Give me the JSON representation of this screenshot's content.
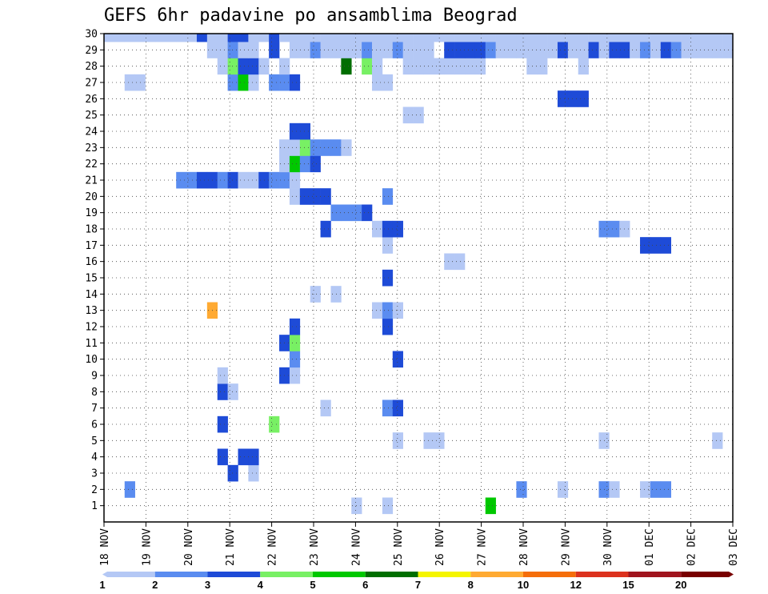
{
  "chart_data": {
    "type": "heatmap",
    "title": "GEFS 6hr padavine po ansamblima Beograd",
    "xlabel": "",
    "ylabel": "",
    "x_tick_labels": [
      "18 NOV",
      "19 NOV",
      "20 NOV",
      "21 NOV",
      "22 NOV",
      "23 NOV",
      "24 NOV",
      "25 NOV",
      "26 NOV",
      "27 NOV",
      "28 NOV",
      "29 NOV",
      "30 NOV",
      "01 DEC",
      "02 DEC",
      "03 DEC"
    ],
    "time_steps": 61,
    "members": 30,
    "grid": true,
    "colorbar": {
      "levels": [
        "1",
        "2",
        "3",
        "4",
        "5",
        "6",
        "7",
        "8",
        "10",
        "12",
        "15",
        "20"
      ],
      "colors": [
        "#b4c8f5",
        "#5a8cf0",
        "#1e4bd7",
        "#78f064",
        "#00c800",
        "#006e00",
        "#f5f500",
        "#ffaa32",
        "#f56e0a",
        "#dc321e",
        "#a0141e",
        "#780000"
      ]
    },
    "cells": [
      [
        1,
        24,
        1
      ],
      [
        1,
        27,
        1
      ],
      [
        1,
        37,
        5
      ],
      [
        2,
        2,
        2
      ],
      [
        2,
        40,
        2
      ],
      [
        2,
        44,
        1
      ],
      [
        2,
        48,
        2
      ],
      [
        2,
        49,
        1
      ],
      [
        2,
        52,
        1
      ],
      [
        2,
        53,
        2
      ],
      [
        2,
        54,
        2
      ],
      [
        3,
        12,
        3
      ],
      [
        3,
        14,
        1
      ],
      [
        4,
        11,
        3
      ],
      [
        4,
        13,
        3
      ],
      [
        4,
        14,
        3
      ],
      [
        5,
        28,
        1
      ],
      [
        5,
        31,
        1
      ],
      [
        5,
        32,
        1
      ],
      [
        5,
        48,
        1
      ],
      [
        5,
        59,
        1
      ],
      [
        6,
        11,
        3
      ],
      [
        6,
        16,
        4
      ],
      [
        7,
        21,
        1
      ],
      [
        7,
        27,
        2
      ],
      [
        7,
        28,
        3
      ],
      [
        8,
        11,
        3
      ],
      [
        8,
        12,
        1
      ],
      [
        9,
        11,
        1
      ],
      [
        9,
        17,
        3
      ],
      [
        9,
        18,
        1
      ],
      [
        10,
        18,
        2
      ],
      [
        10,
        28,
        3
      ],
      [
        11,
        17,
        3
      ],
      [
        11,
        18,
        4
      ],
      [
        12,
        18,
        3
      ],
      [
        12,
        27,
        3
      ],
      [
        13,
        10,
        8
      ],
      [
        13,
        26,
        1
      ],
      [
        13,
        27,
        2
      ],
      [
        13,
        28,
        1
      ],
      [
        14,
        20,
        1
      ],
      [
        14,
        22,
        1
      ],
      [
        15,
        27,
        3
      ],
      [
        16,
        33,
        1
      ],
      [
        16,
        34,
        1
      ],
      [
        17,
        27,
        1
      ],
      [
        17,
        52,
        3
      ],
      [
        17,
        53,
        3
      ],
      [
        17,
        54,
        3
      ],
      [
        18,
        21,
        3
      ],
      [
        18,
        26,
        1
      ],
      [
        18,
        27,
        3
      ],
      [
        18,
        28,
        3
      ],
      [
        18,
        48,
        2
      ],
      [
        18,
        49,
        2
      ],
      [
        18,
        50,
        1
      ],
      [
        19,
        22,
        2
      ],
      [
        19,
        23,
        2
      ],
      [
        19,
        24,
        2
      ],
      [
        19,
        25,
        3
      ],
      [
        20,
        18,
        1
      ],
      [
        20,
        19,
        3
      ],
      [
        20,
        20,
        3
      ],
      [
        20,
        21,
        3
      ],
      [
        20,
        27,
        2
      ],
      [
        21,
        7,
        2
      ],
      [
        21,
        8,
        2
      ],
      [
        21,
        9,
        3
      ],
      [
        21,
        10,
        3
      ],
      [
        21,
        11,
        2
      ],
      [
        21,
        12,
        3
      ],
      [
        21,
        13,
        1
      ],
      [
        21,
        14,
        1
      ],
      [
        21,
        15,
        3
      ],
      [
        21,
        16,
        2
      ],
      [
        21,
        17,
        2
      ],
      [
        21,
        18,
        1
      ],
      [
        22,
        17,
        1
      ],
      [
        22,
        18,
        5
      ],
      [
        22,
        19,
        2
      ],
      [
        22,
        20,
        3
      ],
      [
        23,
        17,
        1
      ],
      [
        23,
        18,
        1
      ],
      [
        23,
        19,
        4
      ],
      [
        23,
        20,
        2
      ],
      [
        23,
        21,
        2
      ],
      [
        23,
        22,
        2
      ],
      [
        23,
        23,
        1
      ],
      [
        24,
        18,
        3
      ],
      [
        24,
        19,
        3
      ],
      [
        25,
        29,
        1
      ],
      [
        25,
        30,
        1
      ],
      [
        26,
        44,
        3
      ],
      [
        26,
        45,
        3
      ],
      [
        26,
        46,
        3
      ],
      [
        27,
        2,
        1
      ],
      [
        27,
        3,
        1
      ],
      [
        27,
        12,
        2
      ],
      [
        27,
        13,
        5
      ],
      [
        27,
        14,
        1
      ],
      [
        27,
        16,
        2
      ],
      [
        27,
        17,
        2
      ],
      [
        27,
        18,
        3
      ],
      [
        27,
        26,
        1
      ],
      [
        27,
        27,
        1
      ],
      [
        28,
        11,
        1
      ],
      [
        28,
        12,
        4
      ],
      [
        28,
        13,
        3
      ],
      [
        28,
        14,
        3
      ],
      [
        28,
        15,
        1
      ],
      [
        28,
        17,
        1
      ],
      [
        28,
        23,
        6
      ],
      [
        28,
        25,
        4
      ],
      [
        28,
        26,
        1
      ],
      [
        28,
        29,
        1
      ],
      [
        28,
        30,
        1
      ],
      [
        28,
        31,
        1
      ],
      [
        28,
        32,
        1
      ],
      [
        28,
        33,
        1
      ],
      [
        28,
        34,
        1
      ],
      [
        28,
        35,
        1
      ],
      [
        28,
        36,
        1
      ],
      [
        28,
        41,
        1
      ],
      [
        28,
        42,
        1
      ],
      [
        28,
        46,
        1
      ],
      [
        29,
        10,
        1
      ],
      [
        29,
        11,
        1
      ],
      [
        29,
        12,
        2
      ],
      [
        29,
        13,
        1
      ],
      [
        29,
        14,
        1
      ],
      [
        29,
        16,
        3
      ],
      [
        29,
        18,
        1
      ],
      [
        29,
        19,
        1
      ],
      [
        29,
        20,
        2
      ],
      [
        29,
        21,
        1
      ],
      [
        29,
        22,
        1
      ],
      [
        29,
        23,
        1
      ],
      [
        29,
        24,
        1
      ],
      [
        29,
        25,
        2
      ],
      [
        29,
        26,
        1
      ],
      [
        29,
        27,
        1
      ],
      [
        29,
        28,
        2
      ],
      [
        29,
        29,
        1
      ],
      [
        29,
        30,
        1
      ],
      [
        29,
        31,
        1
      ],
      [
        29,
        33,
        3
      ],
      [
        29,
        34,
        3
      ],
      [
        29,
        35,
        3
      ],
      [
        29,
        36,
        3
      ],
      [
        29,
        37,
        2
      ],
      [
        29,
        38,
        1
      ],
      [
        29,
        39,
        1
      ],
      [
        29,
        40,
        1
      ],
      [
        29,
        41,
        1
      ],
      [
        29,
        42,
        1
      ],
      [
        29,
        43,
        1
      ],
      [
        29,
        44,
        3
      ],
      [
        29,
        45,
        1
      ],
      [
        29,
        46,
        1
      ],
      [
        29,
        47,
        3
      ],
      [
        29,
        48,
        1
      ],
      [
        29,
        49,
        3
      ],
      [
        29,
        50,
        3
      ],
      [
        29,
        51,
        1
      ],
      [
        29,
        52,
        2
      ],
      [
        29,
        53,
        1
      ],
      [
        29,
        54,
        3
      ],
      [
        29,
        55,
        2
      ],
      [
        29,
        56,
        1
      ],
      [
        29,
        57,
        1
      ],
      [
        29,
        58,
        1
      ],
      [
        29,
        59,
        1
      ],
      [
        29,
        60,
        1
      ],
      [
        30,
        0,
        1
      ],
      [
        30,
        1,
        1
      ],
      [
        30,
        2,
        1
      ],
      [
        30,
        3,
        1
      ],
      [
        30,
        4,
        1
      ],
      [
        30,
        5,
        1
      ],
      [
        30,
        6,
        1
      ],
      [
        30,
        7,
        1
      ],
      [
        30,
        8,
        1
      ],
      [
        30,
        9,
        3
      ],
      [
        30,
        10,
        1
      ],
      [
        30,
        11,
        1
      ],
      [
        30,
        12,
        3
      ],
      [
        30,
        13,
        3
      ],
      [
        30,
        14,
        1
      ],
      [
        30,
        15,
        1
      ],
      [
        30,
        16,
        3
      ],
      [
        30,
        17,
        1
      ],
      [
        30,
        18,
        1
      ],
      [
        30,
        19,
        1
      ],
      [
        30,
        20,
        1
      ],
      [
        30,
        21,
        1
      ],
      [
        30,
        22,
        1
      ],
      [
        30,
        23,
        1
      ],
      [
        30,
        24,
        1
      ],
      [
        30,
        25,
        1
      ],
      [
        30,
        26,
        1
      ],
      [
        30,
        27,
        1
      ],
      [
        30,
        28,
        1
      ],
      [
        30,
        29,
        1
      ],
      [
        30,
        30,
        1
      ],
      [
        30,
        31,
        1
      ],
      [
        30,
        32,
        1
      ],
      [
        30,
        33,
        1
      ],
      [
        30,
        34,
        1
      ],
      [
        30,
        35,
        1
      ],
      [
        30,
        36,
        1
      ],
      [
        30,
        37,
        1
      ],
      [
        30,
        38,
        1
      ],
      [
        30,
        39,
        1
      ],
      [
        30,
        40,
        1
      ],
      [
        30,
        41,
        1
      ],
      [
        30,
        42,
        1
      ],
      [
        30,
        43,
        1
      ],
      [
        30,
        44,
        1
      ],
      [
        30,
        45,
        1
      ],
      [
        30,
        46,
        1
      ],
      [
        30,
        47,
        1
      ],
      [
        30,
        48,
        1
      ],
      [
        30,
        49,
        1
      ],
      [
        30,
        50,
        1
      ],
      [
        30,
        51,
        1
      ],
      [
        30,
        52,
        1
      ],
      [
        30,
        53,
        1
      ],
      [
        30,
        54,
        1
      ],
      [
        30,
        55,
        1
      ],
      [
        30,
        56,
        1
      ],
      [
        30,
        57,
        1
      ],
      [
        30,
        58,
        1
      ],
      [
        30,
        59,
        1
      ],
      [
        30,
        60,
        1
      ]
    ]
  }
}
